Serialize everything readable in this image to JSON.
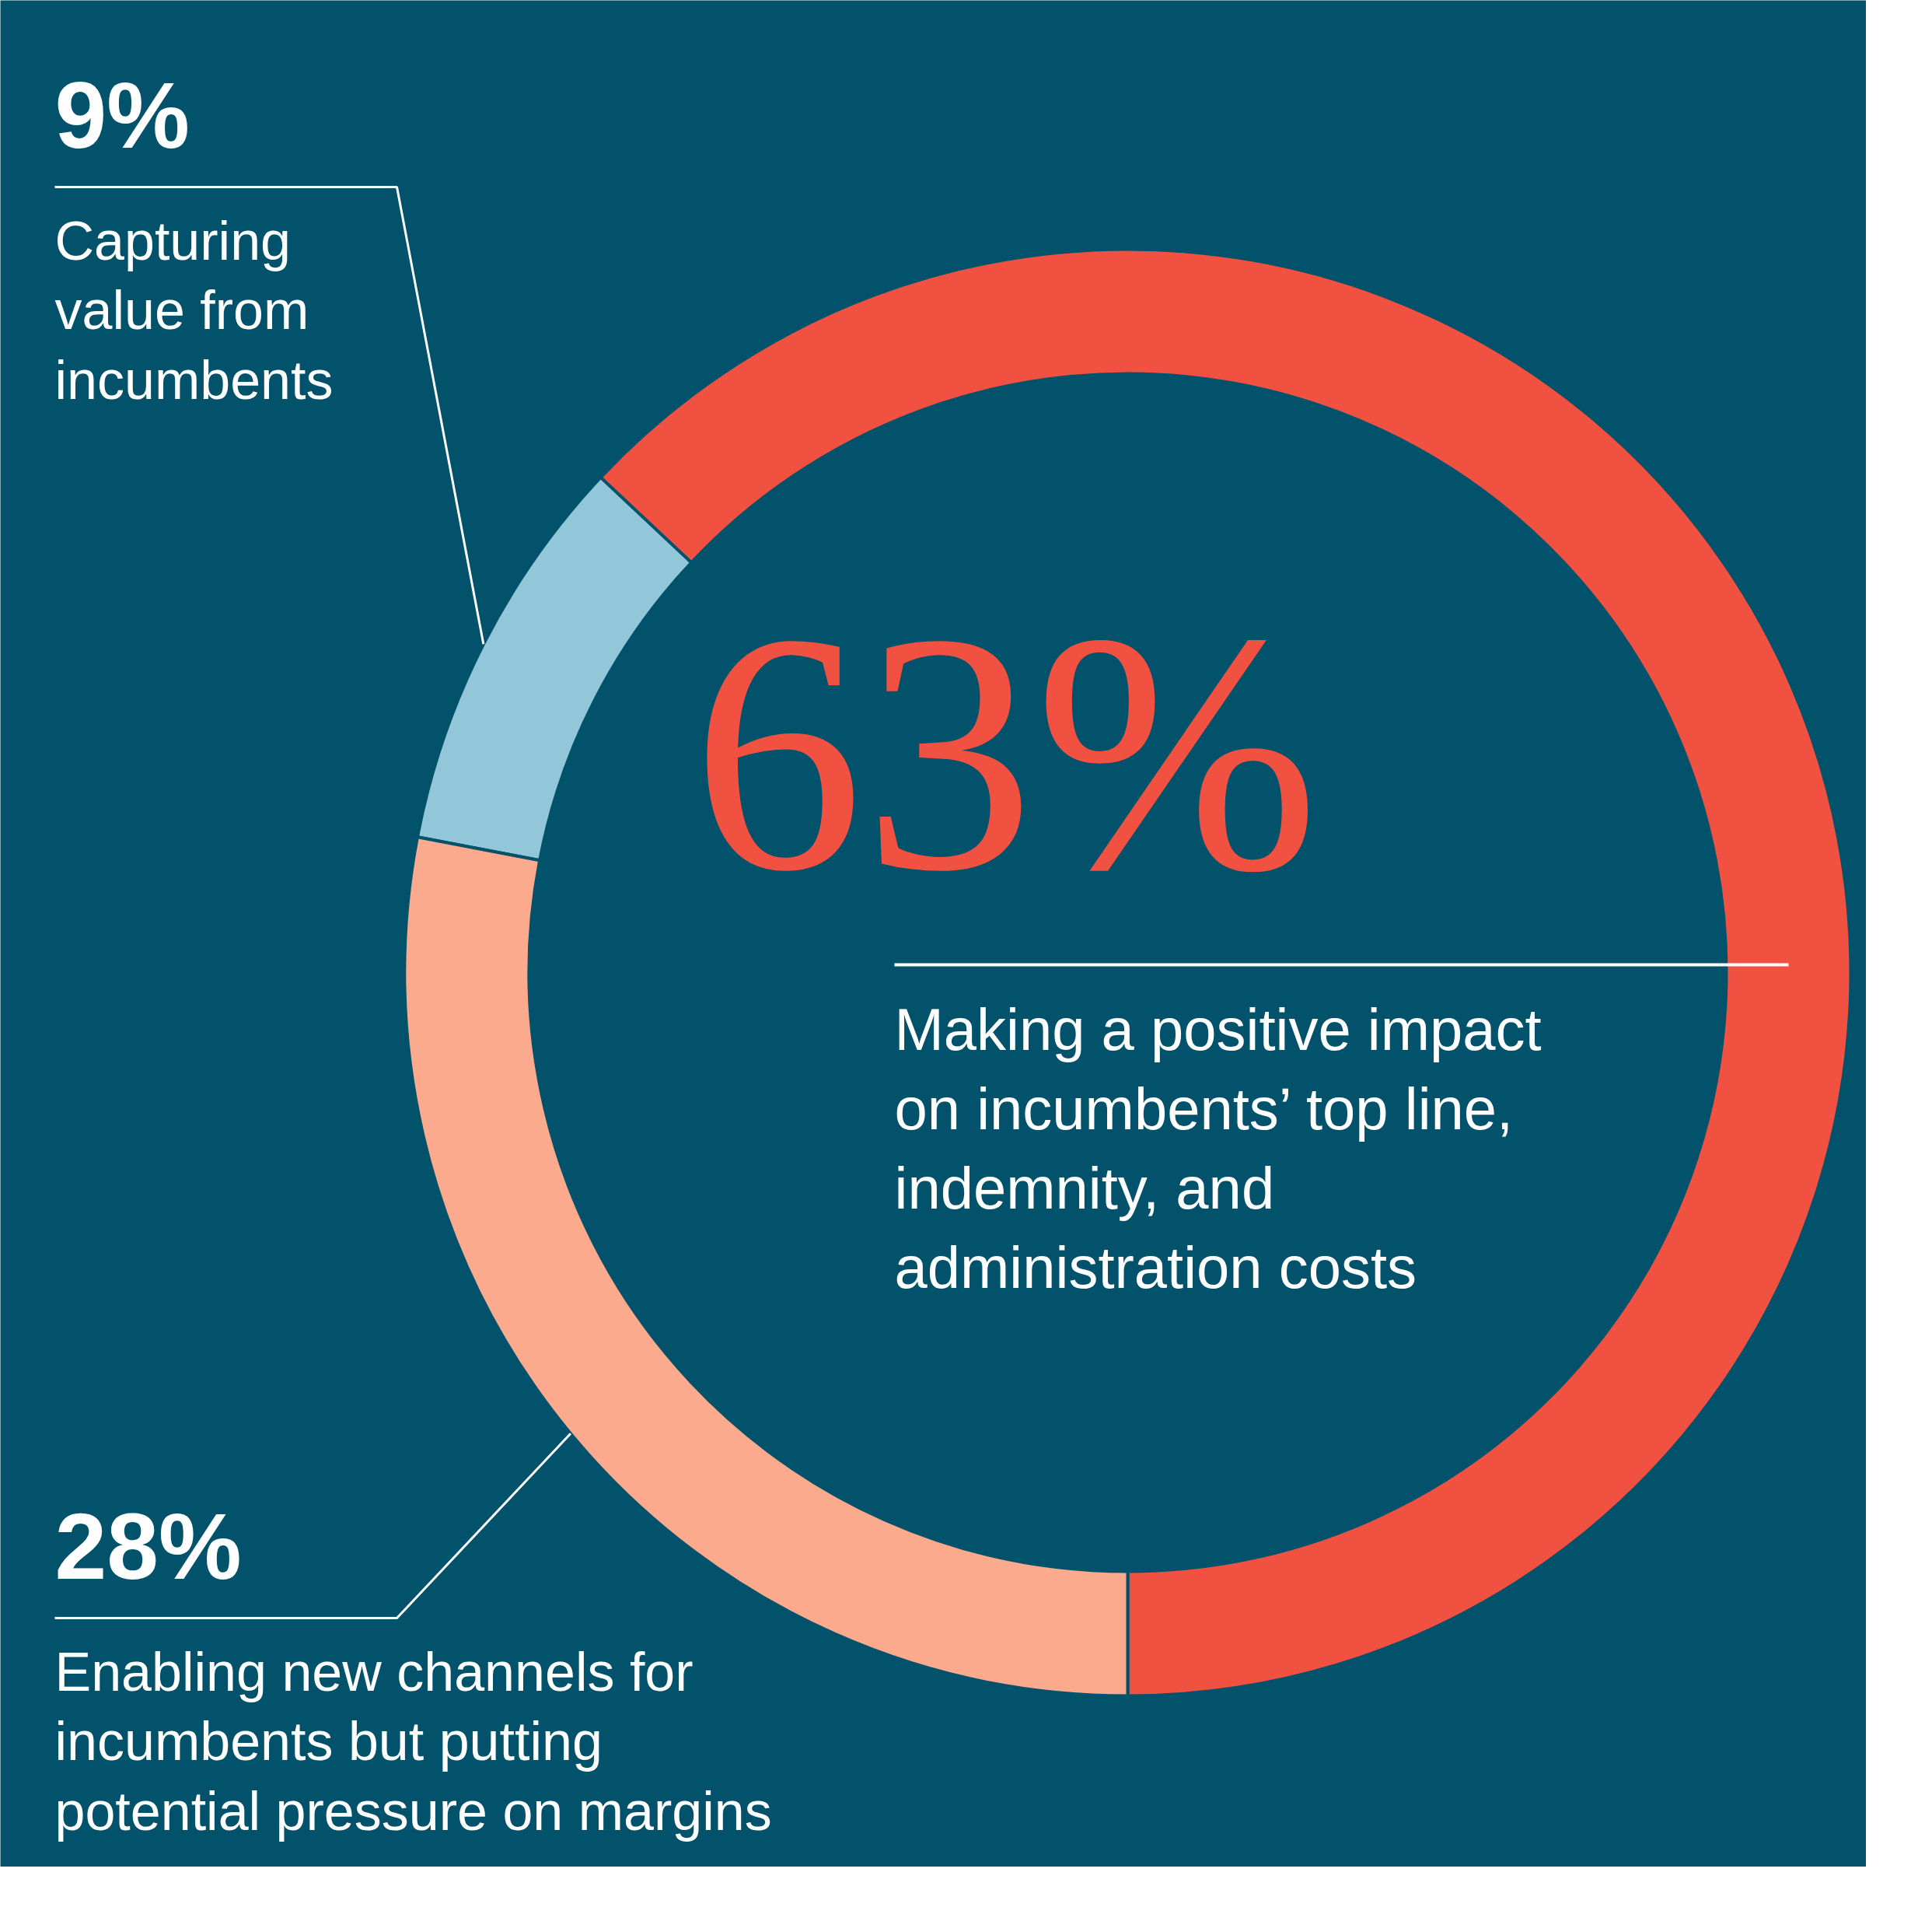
{
  "chart_data": {
    "type": "donut",
    "categories": [
      "Making a positive impact on incumbents’ top line, indemnity, and administration costs",
      "Capturing value from incumbents",
      "Enabling new channels for incumbents but putting potential pressure on margins"
    ],
    "values": [
      63,
      9,
      28
    ],
    "value_labels": [
      "63%",
      "9%",
      "28%"
    ],
    "colors": [
      "#f05141",
      "#92c7da",
      "#fbaa8d"
    ]
  }
}
